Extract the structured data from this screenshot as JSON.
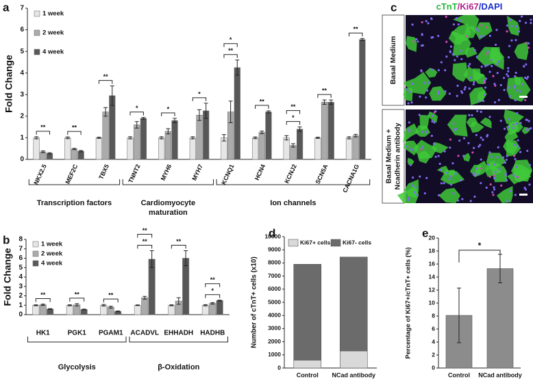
{
  "chart_data": [
    {
      "type": "grouped_bar",
      "panel": "a",
      "ylabel": "Fold Change",
      "categories": [
        "NKX2.5",
        "MEF2C",
        "TBX5",
        "TNNT2",
        "MYH6",
        "MYH7",
        "KCNQ1",
        "HCN4",
        "KCNJ2",
        "SCN5A",
        "CACNA1G"
      ],
      "series": [
        {
          "name": "1 week",
          "color": "#e6e6e6",
          "values": [
            1,
            1,
            1,
            1,
            1,
            1,
            1,
            1,
            1,
            1,
            1
          ],
          "errors": [
            0.05,
            0.04,
            0.03,
            0.05,
            0.05,
            0.05,
            0.15,
            0.04,
            0.1,
            0.03,
            0.05
          ]
        },
        {
          "name": "2 week",
          "color": "#ababab",
          "values": [
            0.35,
            0.48,
            2.2,
            1.6,
            1.3,
            2.05,
            2.2,
            1.25,
            0.65,
            2.65,
            1.1
          ],
          "errors": [
            0.04,
            0.03,
            0.2,
            0.15,
            0.12,
            0.25,
            0.5,
            0.06,
            0.08,
            0.1,
            0.06
          ]
        },
        {
          "name": "4 week",
          "color": "#585858",
          "values": [
            0.28,
            0.38,
            2.95,
            1.9,
            1.8,
            2.25,
            4.25,
            2.2,
            1.4,
            2.65,
            5.55
          ],
          "errors": [
            0.03,
            0.03,
            0.45,
            0.04,
            0.1,
            0.35,
            0.35,
            0.05,
            0.1,
            0.1,
            0.05
          ]
        }
      ],
      "significance": [
        [
          "**"
        ],
        [
          "**"
        ],
        [
          "**"
        ],
        [
          "*"
        ],
        [
          "*"
        ],
        [
          "*"
        ],
        [
          "**",
          "*"
        ],
        [
          "**"
        ],
        [
          "*",
          "**"
        ],
        [
          "**"
        ],
        [
          "**"
        ]
      ],
      "groups": [
        {
          "label": [
            "Transcription factors"
          ],
          "categories": [
            "NKX2.5",
            "MEF2C",
            "TBX5"
          ]
        },
        {
          "label": [
            "Cardiomyocyte",
            "maturation"
          ],
          "categories": [
            "TNNT2",
            "MYH6",
            "MYH7"
          ]
        },
        {
          "label": [
            "Ion channels"
          ],
          "categories": [
            "KCNQ1",
            "HCN4",
            "KCNJ2",
            "SCN5A",
            "CACNA1G"
          ]
        }
      ],
      "ylim": [
        0,
        7
      ],
      "yticks": [
        0,
        1,
        2,
        3,
        4,
        5,
        6,
        7
      ]
    },
    {
      "type": "grouped_bar",
      "panel": "b",
      "ylabel": "Fold Change",
      "categories": [
        "HK1",
        "PGK1",
        "PGAM1",
        "ACADVL",
        "EHHADH",
        "HADHB"
      ],
      "series": [
        {
          "name": "1 week",
          "color": "#e6e6e6",
          "values": [
            1,
            1,
            1,
            1,
            1,
            1
          ],
          "errors": [
            0.05,
            0.05,
            0.08,
            0.04,
            0.05,
            0.06
          ]
        },
        {
          "name": "2 week",
          "color": "#ababab",
          "values": [
            1.05,
            1.05,
            0.8,
            1.8,
            1.45,
            1.2
          ],
          "errors": [
            0.08,
            0.12,
            0.1,
            0.15,
            0.35,
            0.08
          ]
        },
        {
          "name": "4 week",
          "color": "#585858",
          "values": [
            0.6,
            0.55,
            0.35,
            5.9,
            6.0,
            1.5
          ],
          "errors": [
            0.04,
            0.04,
            0.04,
            0.9,
            0.8,
            0.05
          ]
        }
      ],
      "significance": [
        [
          "**"
        ],
        [
          "**"
        ],
        [
          "**"
        ],
        [
          "**",
          "**"
        ],
        [
          "**"
        ],
        [
          "*",
          "**"
        ]
      ],
      "groups": [
        {
          "label": [
            "Glycolysis"
          ],
          "categories": [
            "HK1",
            "PGK1",
            "PGAM1"
          ]
        },
        {
          "label": [
            "β-Oxidation"
          ],
          "categories": [
            "ACADVL",
            "EHHADH",
            "HADHB"
          ]
        }
      ],
      "ylim": [
        0,
        8
      ],
      "yticks": [
        0,
        1,
        2,
        3,
        4,
        5,
        6,
        7,
        8
      ]
    },
    {
      "type": "image",
      "panel": "c",
      "title_parts": [
        {
          "text": "cTnT",
          "color": "#22b83a"
        },
        {
          "text": "/Ki67",
          "color": "#b0208a"
        },
        {
          "text": "/DAPI",
          "color": "#1a2fd0"
        }
      ],
      "rows": [
        [
          "Basal Medium"
        ],
        [
          "Basal Medium +",
          "Ncadherin antibody"
        ]
      ]
    },
    {
      "type": "stacked_bar",
      "panel": "d",
      "ylabel": "Number of cTnT+ cells (x10)",
      "categories": [
        "Control",
        "NCad antibody"
      ],
      "series": [
        {
          "name": "Ki67+ cells",
          "color": "#d9d9d9",
          "values": [
            600,
            1300
          ]
        },
        {
          "name": "Ki67- cells",
          "color": "#6b6b6b",
          "values": [
            7300,
            7150
          ]
        }
      ],
      "ylim": [
        0,
        10000
      ],
      "yticks": [
        0,
        1000,
        2000,
        3000,
        4000,
        5000,
        6000,
        7000,
        8000,
        9000,
        10000
      ]
    },
    {
      "type": "bar",
      "panel": "e",
      "ylabel": "Percentage of Ki67+/cTnT+ cells (%)",
      "categories": [
        "Control",
        "NCad antibody"
      ],
      "values": [
        8.1,
        15.3
      ],
      "errors": [
        4.2,
        2.2
      ],
      "color": "#8c8c8c",
      "significance": "*",
      "ylim": [
        0,
        20
      ],
      "yticks": [
        0,
        2,
        4,
        6,
        8,
        10,
        12,
        14,
        16,
        18,
        20
      ]
    }
  ]
}
